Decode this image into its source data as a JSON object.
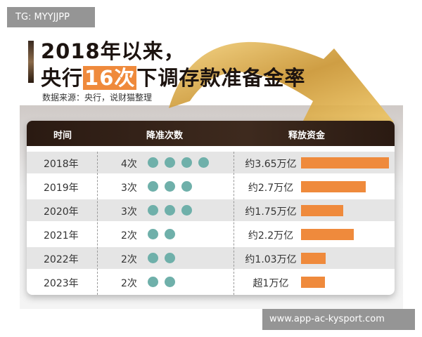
{
  "overlay": {
    "tag": "TG: MYYJJPP",
    "url": "www.app-ac-kysport.com"
  },
  "title": {
    "line1": "2018年以来，",
    "line2_pre": "央行",
    "line2_highlight": "16次",
    "line2_post": "下调存款准备金率",
    "source": "数据来源：央行，说财猫整理"
  },
  "colors": {
    "bar": "#ef8a3c",
    "dot": "#6fb0aa",
    "header": "#2a1a12"
  },
  "chart_data": {
    "type": "table",
    "columns": [
      "时间",
      "降准次数",
      "释放资金"
    ],
    "rows": [
      {
        "year": "2018年",
        "count_label": "4次",
        "count": 4,
        "amount_label": "约3.65万亿",
        "amount": 3.65
      },
      {
        "year": "2019年",
        "count_label": "3次",
        "count": 3,
        "amount_label": "约2.7万亿",
        "amount": 2.7
      },
      {
        "year": "2020年",
        "count_label": "3次",
        "count": 3,
        "amount_label": "约1.75万亿",
        "amount": 1.75
      },
      {
        "year": "2021年",
        "count_label": "2次",
        "count": 2,
        "amount_label": "约2.2万亿",
        "amount": 2.2
      },
      {
        "year": "2022年",
        "count_label": "2次",
        "count": 2,
        "amount_label": "约1.03万亿",
        "amount": 1.03
      },
      {
        "year": "2023年",
        "count_label": "2次",
        "count": 2,
        "amount_label": "超1万亿",
        "amount": 1.0
      }
    ]
  }
}
